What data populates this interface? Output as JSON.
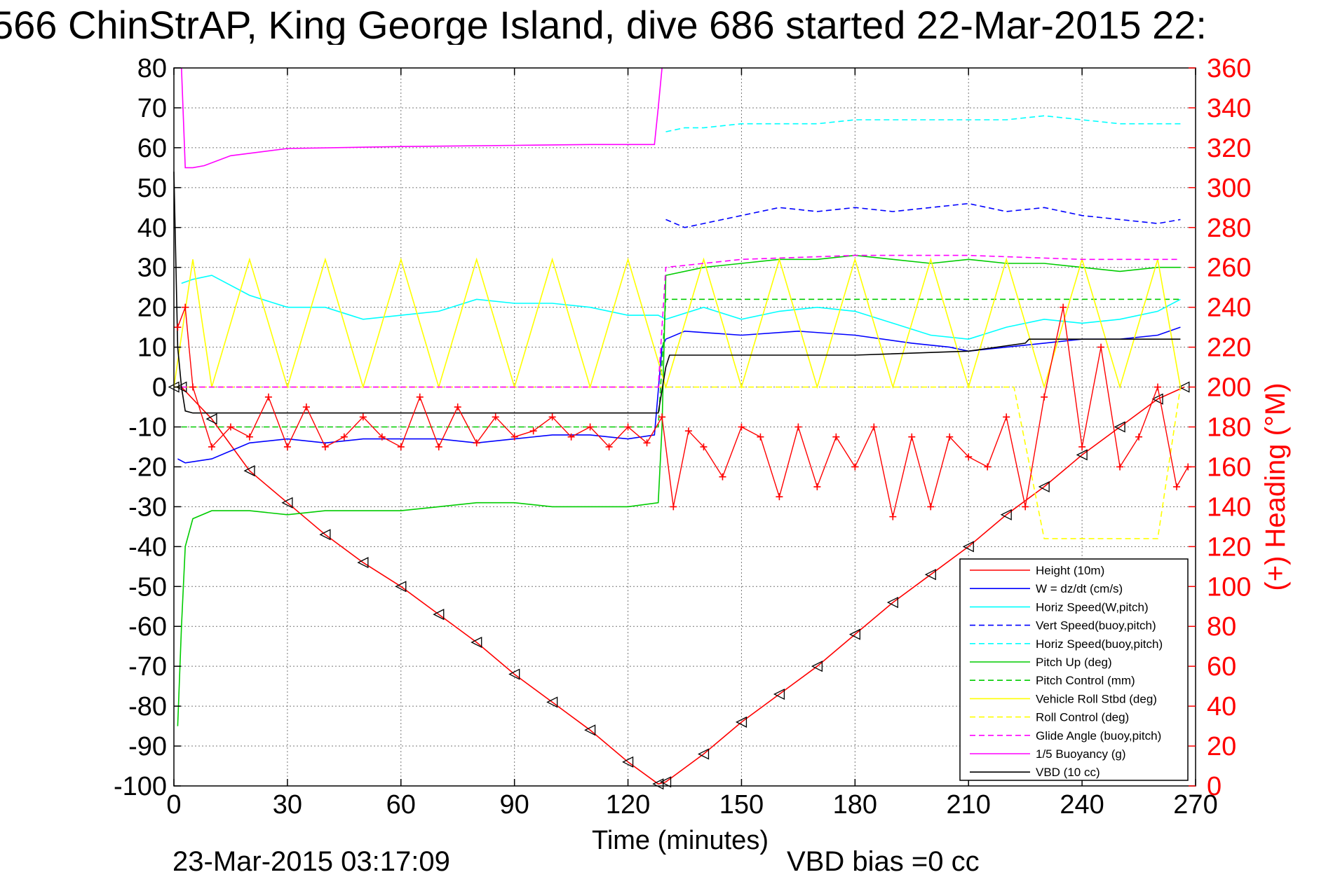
{
  "chart_data": {
    "type": "line",
    "title": "566 ChinStrAP, King George Island, dive 686 started 22-Mar-2015 22:",
    "xlabel": "Time (minutes)",
    "ylabel_right": "(+) Heading (°M)",
    "footer_left": "23-Mar-2015 03:17:09",
    "footer_right": "VBD bias =0 cc",
    "xlim": [
      0,
      270
    ],
    "ylim": [
      -100,
      80
    ],
    "ylim_right": [
      0,
      360
    ],
    "x_ticks": [
      "0",
      "30",
      "60",
      "90",
      "120",
      "150",
      "180",
      "210",
      "240",
      "270"
    ],
    "y_ticks": [
      "80",
      "70",
      "60",
      "50",
      "40",
      "30",
      "20",
      "10",
      "0",
      "-10",
      "-20",
      "-30",
      "-40",
      "-50",
      "-60",
      "-70",
      "-80",
      "-90",
      "-100"
    ],
    "y_ticks_right": [
      "360",
      "340",
      "320",
      "300",
      "280",
      "260",
      "240",
      "220",
      "200",
      "180",
      "160",
      "140",
      "120",
      "100",
      "80",
      "60",
      "40",
      "20",
      "0"
    ],
    "grid": true,
    "legend_position": "bottom-right",
    "legend": [
      {
        "label": "Height (10m)",
        "color": "#ff0000",
        "dash": "solid"
      },
      {
        "label": "W = dz/dt (cm/s)",
        "color": "#0000ff",
        "dash": "solid"
      },
      {
        "label": "Horiz Speed(W,pitch)",
        "color": "#00ffff",
        "dash": "solid"
      },
      {
        "label": "Vert Speed(buoy,pitch)",
        "color": "#0000ff",
        "dash": "dashed"
      },
      {
        "label": "Horiz Speed(buoy,pitch)",
        "color": "#00ffff",
        "dash": "dashed"
      },
      {
        "label": "Pitch Up (deg)",
        "color": "#00cc00",
        "dash": "solid"
      },
      {
        "label": "Pitch Control (mm)",
        "color": "#00cc00",
        "dash": "dashed"
      },
      {
        "label": "Vehicle Roll Stbd (deg)",
        "color": "#ffff00",
        "dash": "solid"
      },
      {
        "label": "Roll Control (deg)",
        "color": "#ffff00",
        "dash": "dashed"
      },
      {
        "label": "Glide Angle (buoy,pitch)",
        "color": "#ff00ff",
        "dash": "dashed"
      },
      {
        "label": "1/5 Buoyancy (g)",
        "color": "#ff00ff",
        "dash": "solid"
      },
      {
        "label": "VBD (10 cc)",
        "color": "#000000",
        "dash": "solid"
      }
    ],
    "series": [
      {
        "name": "Height (10m)",
        "color": "#ff0000",
        "dash": "solid",
        "markers": "triangle",
        "x": [
          0,
          2,
          10,
          20,
          30,
          40,
          50,
          60,
          70,
          80,
          90,
          100,
          110,
          120,
          128,
          130,
          140,
          150,
          160,
          170,
          180,
          190,
          200,
          210,
          220,
          230,
          240,
          250,
          260,
          267
        ],
        "y": [
          0,
          0,
          -8,
          -21,
          -29,
          -37,
          -44,
          -50,
          -57,
          -64,
          -72,
          -79,
          -86,
          -94,
          -99.5,
          -99,
          -92,
          -84,
          -77,
          -70,
          -62,
          -54,
          -47,
          -40,
          -32,
          -25,
          -17,
          -10,
          -3,
          0
        ]
      },
      {
        "name": "W = dz/dt (cm/s)",
        "color": "#0000ff",
        "dash": "solid",
        "x": [
          1,
          3,
          10,
          20,
          30,
          40,
          50,
          60,
          70,
          80,
          90,
          100,
          110,
          120,
          127,
          129,
          130,
          135,
          150,
          165,
          180,
          195,
          205,
          210,
          220,
          230,
          240,
          250,
          260,
          266
        ],
        "y": [
          -18,
          -19,
          -18,
          -14,
          -13,
          -14,
          -13,
          -13,
          -13,
          -14,
          -13,
          -12,
          -12,
          -13,
          -12,
          10,
          12,
          14,
          13,
          14,
          13,
          11,
          10,
          9,
          10,
          11,
          12,
          12,
          13,
          15
        ]
      },
      {
        "name": "Horiz Speed(W,pitch)",
        "color": "#00ffff",
        "dash": "solid",
        "x": [
          2,
          5,
          10,
          20,
          30,
          40,
          50,
          60,
          70,
          80,
          90,
          100,
          110,
          120,
          128,
          130,
          140,
          150,
          160,
          170,
          180,
          190,
          200,
          210,
          220,
          230,
          240,
          250,
          260,
          266
        ],
        "y": [
          26,
          27,
          28,
          23,
          20,
          20,
          17,
          18,
          19,
          22,
          21,
          21,
          20,
          18,
          18,
          17,
          20,
          17,
          19,
          20,
          19,
          16,
          13,
          12,
          15,
          17,
          16,
          17,
          19,
          22
        ]
      },
      {
        "name": "Vert Speed(buoy,pitch)",
        "color": "#0000ff",
        "dash": "dashed",
        "x": [
          130,
          135,
          140,
          150,
          160,
          170,
          180,
          190,
          200,
          210,
          220,
          230,
          240,
          250,
          260,
          266
        ],
        "y": [
          42,
          40,
          41,
          43,
          45,
          44,
          45,
          44,
          45,
          46,
          44,
          45,
          43,
          42,
          41,
          42
        ]
      },
      {
        "name": "Horiz Speed(buoy,pitch)",
        "color": "#00ffff",
        "dash": "dashed",
        "x": [
          130,
          135,
          140,
          150,
          160,
          170,
          180,
          190,
          200,
          210,
          220,
          230,
          240,
          250,
          260,
          266
        ],
        "y": [
          64,
          65,
          65,
          66,
          66,
          66,
          67,
          67,
          67,
          67,
          67,
          68,
          67,
          66,
          66,
          66
        ]
      },
      {
        "name": "Pitch Up (deg)",
        "color": "#00cc00",
        "dash": "solid",
        "x": [
          1,
          2,
          3,
          5,
          10,
          20,
          30,
          40,
          50,
          60,
          70,
          80,
          90,
          100,
          110,
          120,
          128,
          129,
          130,
          140,
          150,
          160,
          170,
          180,
          190,
          200,
          210,
          220,
          230,
          240,
          250,
          260,
          266
        ],
        "y": [
          -85,
          -60,
          -40,
          -33,
          -31,
          -31,
          -32,
          -31,
          -31,
          -31,
          -30,
          -29,
          -29,
          -30,
          -30,
          -30,
          -29,
          -10,
          28,
          30,
          31,
          32,
          32,
          33,
          32,
          31,
          32,
          31,
          31,
          30,
          29,
          30,
          30
        ]
      },
      {
        "name": "Pitch Control (mm)",
        "color": "#00cc00",
        "dash": "dashed",
        "x": [
          2,
          10,
          30,
          60,
          90,
          120,
          128,
          130,
          160,
          200,
          240,
          266
        ],
        "y": [
          -10,
          -10,
          -10,
          -10,
          -10,
          -10,
          -10,
          22,
          22,
          22,
          22,
          22
        ]
      },
      {
        "name": "Vehicle Roll Stbd (deg)",
        "color": "#ffff00",
        "dash": "solid",
        "x": [
          0,
          5,
          10,
          20,
          30,
          40,
          50,
          60,
          70,
          80,
          90,
          100,
          110,
          120,
          130,
          140,
          150,
          160,
          170,
          180,
          190,
          200,
          210,
          220,
          230,
          240,
          250,
          260,
          266
        ],
        "y": [
          0,
          32,
          0,
          32,
          0,
          32,
          0,
          32,
          0,
          32,
          0,
          32,
          0,
          32,
          0,
          32,
          0,
          32,
          0,
          32,
          0,
          32,
          0,
          32,
          0,
          32,
          0,
          32,
          0
        ]
      },
      {
        "name": "Roll Control (deg)",
        "color": "#ffff00",
        "dash": "dashed",
        "x": [
          0,
          5,
          15,
          25,
          35,
          45,
          55,
          65,
          75,
          85,
          95,
          105,
          115,
          125,
          130,
          140,
          150,
          160,
          170,
          180,
          190,
          200,
          210,
          222,
          230,
          240,
          250,
          260,
          266
        ],
        "y": [
          0,
          0,
          0,
          0,
          0,
          0,
          0,
          0,
          0,
          0,
          0,
          0,
          0,
          0,
          0,
          0,
          0,
          0,
          0,
          0,
          0,
          0,
          0,
          0,
          -38,
          -38,
          -38,
          -38,
          0
        ]
      },
      {
        "name": "Glide Angle (buoy,pitch)",
        "color": "#ff00ff",
        "dash": "dashed",
        "x": [
          2,
          30,
          60,
          90,
          120,
          128,
          130,
          150,
          180,
          210,
          240,
          266
        ],
        "y": [
          0,
          0,
          0,
          0,
          0,
          0,
          30,
          32,
          33,
          33,
          32,
          32
        ]
      },
      {
        "name": "1/5 Buoyancy (g)",
        "color": "#ff00ff",
        "dash": "solid",
        "x": [
          2,
          3,
          5,
          8,
          15,
          30,
          60,
          90,
          110,
          127,
          128,
          129
        ],
        "y": [
          80,
          55,
          55,
          55.5,
          58,
          59.8,
          60.3,
          60.6,
          60.8,
          60.8,
          70,
          80
        ]
      },
      {
        "name": "VBD (10 cc)",
        "color": "#000000",
        "dash": "solid",
        "x": [
          0,
          1,
          2,
          3,
          5,
          30,
          60,
          90,
          120,
          128,
          130,
          131,
          140,
          180,
          210,
          225,
          226,
          240,
          266
        ],
        "y": [
          54,
          10,
          0,
          -6,
          -6.5,
          -6.5,
          -6.5,
          -6.5,
          -6.5,
          -6.5,
          5,
          8,
          8,
          8,
          9,
          11,
          12,
          12,
          12
        ]
      },
      {
        "name": "(+) Heading (°M)",
        "color": "#ff0000",
        "axis": "right",
        "markers": "plus",
        "x": [
          1,
          3,
          5,
          10,
          15,
          20,
          25,
          30,
          35,
          40,
          45,
          50,
          55,
          60,
          65,
          70,
          75,
          80,
          85,
          90,
          95,
          100,
          105,
          110,
          115,
          120,
          125,
          129,
          132,
          136,
          140,
          145,
          150,
          155,
          160,
          165,
          170,
          175,
          180,
          185,
          190,
          195,
          200,
          205,
          210,
          215,
          220,
          225,
          230,
          235,
          240,
          245,
          250,
          255,
          260,
          265,
          268
        ],
        "y": [
          230,
          240,
          200,
          170,
          180,
          175,
          195,
          170,
          190,
          170,
          175,
          185,
          175,
          170,
          195,
          170,
          190,
          172,
          185,
          175,
          178,
          185,
          175,
          180,
          170,
          180,
          172,
          185,
          140,
          178,
          170,
          155,
          180,
          175,
          145,
          180,
          150,
          175,
          160,
          180,
          135,
          175,
          140,
          175,
          165,
          160,
          185,
          140,
          195,
          240,
          170,
          220,
          160,
          175,
          200,
          150,
          160
        ]
      }
    ]
  }
}
